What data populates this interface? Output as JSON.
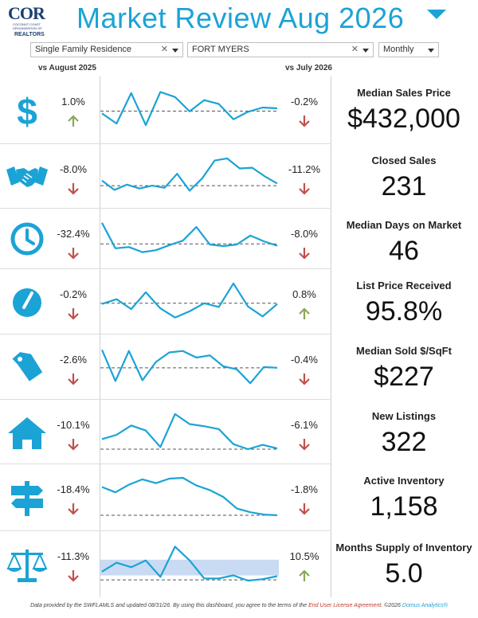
{
  "header": {
    "logo_text": "COR",
    "logo_sub": "COCONUT COAST ORGANIZATION OF",
    "logo_realtors": "REALTORS",
    "title": "Market Review  Aug 2026"
  },
  "filters": {
    "property_type": "Single Family Residence",
    "city": "FORT MYERS",
    "period": "Monthly"
  },
  "columns": {
    "left": "vs August 2025",
    "right": "vs July 2026"
  },
  "colors": {
    "accent": "#1ba3d6",
    "down": "#c0504d",
    "up": "#8aa85a"
  },
  "metrics": [
    {
      "label": "Median Sales Price",
      "value": "$432,000",
      "yoy": "1.0%",
      "yoy_dir": "up",
      "mom": "-0.2%",
      "mom_dir": "down",
      "icon": "dollar-icon",
      "trend": [
        0.4,
        0.14,
        0.92,
        0.1,
        0.95,
        0.82,
        0.45,
        0.74,
        0.64,
        0.25,
        0.44,
        0.55,
        0.53
      ],
      "baseline": 0.46
    },
    {
      "label": "Closed Sales",
      "value": "231",
      "yoy": "-8.0%",
      "yoy_dir": "down",
      "mom": "-11.2%",
      "mom_dir": "down",
      "icon": "handshake-icon",
      "trend": [
        0.36,
        0.1,
        0.25,
        0.14,
        0.22,
        0.16,
        0.55,
        0.08,
        0.42,
        0.92,
        0.98,
        0.7,
        0.72,
        0.48,
        0.28
      ],
      "baseline": 0.22
    },
    {
      "label": "Median Days on Market",
      "value": "46",
      "yoy": "-32.4%",
      "yoy_dir": "down",
      "mom": "-8.0%",
      "mom_dir": "down",
      "icon": "clock-icon",
      "trend": [
        0.98,
        0.18,
        0.22,
        0.06,
        0.12,
        0.28,
        0.42,
        0.85,
        0.3,
        0.25,
        0.3,
        0.58,
        0.4,
        0.26
      ],
      "baseline": 0.32
    },
    {
      "label": "List Price Received",
      "value": "95.8%",
      "yoy": "-0.2%",
      "yoy_dir": "down",
      "mom": "0.8%",
      "mom_dir": "up",
      "icon": "gauge-icon",
      "trend": [
        0.42,
        0.55,
        0.28,
        0.74,
        0.3,
        0.05,
        0.22,
        0.44,
        0.34,
        0.98,
        0.35,
        0.08,
        0.42
      ],
      "baseline": 0.44
    },
    {
      "label": "Median Sold $/SqFt",
      "value": "$227",
      "yoy": "-2.6%",
      "yoy_dir": "down",
      "mom": "-0.4%",
      "mom_dir": "down",
      "icon": "price-tag-icon",
      "trend": [
        0.95,
        0.1,
        0.92,
        0.12,
        0.62,
        0.88,
        0.92,
        0.74,
        0.8,
        0.5,
        0.42,
        0.04,
        0.48,
        0.46
      ],
      "baseline": 0.46
    },
    {
      "label": "New Listings",
      "value": "322",
      "yoy": "-10.1%",
      "yoy_dir": "down",
      "mom": "-6.1%",
      "mom_dir": "down",
      "icon": "house-icon",
      "trend": [
        0.28,
        0.4,
        0.66,
        0.52,
        0.06,
        0.98,
        0.7,
        0.64,
        0.56,
        0.14,
        0.0,
        0.12,
        0.02
      ],
      "baseline": 0.0
    },
    {
      "label": "Active Inventory",
      "value": "1,158",
      "yoy": "-18.4%",
      "yoy_dir": "down",
      "mom": "-1.8%",
      "mom_dir": "down",
      "icon": "signpost-icon",
      "trend": [
        0.76,
        0.62,
        0.82,
        0.96,
        0.86,
        0.98,
        1.0,
        0.8,
        0.68,
        0.5,
        0.2,
        0.1,
        0.04,
        0.02
      ],
      "baseline": 0.02
    },
    {
      "label": "Months Supply of Inventory",
      "value": "5.0",
      "yoy": "-11.3%",
      "yoy_dir": "down",
      "mom": "10.5%",
      "mom_dir": "up",
      "icon": "balance-scale-icon",
      "trend": [
        0.28,
        0.52,
        0.4,
        0.58,
        0.14,
        0.95,
        0.58,
        0.1,
        0.1,
        0.18,
        0.04,
        0.08,
        0.16
      ],
      "baseline": 0.06,
      "band": [
        0.18,
        0.6
      ]
    }
  ],
  "footer": {
    "prefix": "Data provided by the SWFLAMLS and updated 08/31/26.  By using this dashboard, you agree to the terms of the ",
    "link": "End User License Agreement",
    "middle": ".  ©2026 ",
    "brand": "Domus Analytics®"
  }
}
